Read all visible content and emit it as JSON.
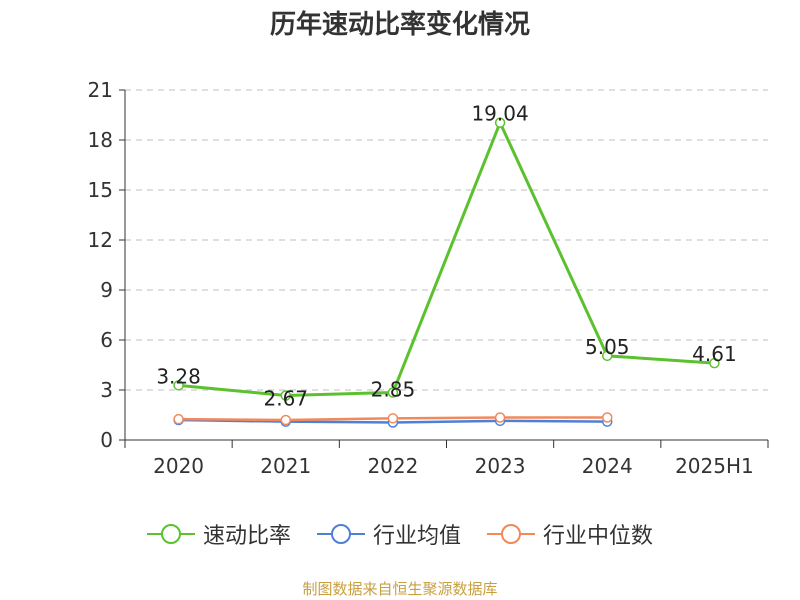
{
  "title": "历年速动比率变化情况",
  "source": "制图数据来自恒生聚源数据库",
  "chart_data": {
    "type": "line",
    "title": "历年速动比率变化情况",
    "categories": [
      "2020",
      "2021",
      "2022",
      "2023",
      "2024",
      "2025H1"
    ],
    "ylim": [
      0,
      21
    ],
    "yticks": [
      0,
      3,
      6,
      9,
      12,
      15,
      18,
      21
    ],
    "grid": true,
    "legend_position": "bottom",
    "series": [
      {
        "name": "速动比率",
        "color": "#5bc12e",
        "values": [
          3.28,
          2.67,
          2.85,
          19.04,
          5.05,
          4.61
        ],
        "labels": [
          "3.28",
          "2.67",
          "2.85",
          "19.04",
          "5.05",
          "4.61"
        ]
      },
      {
        "name": "行业均值",
        "color": "#4f7fd6",
        "values": [
          1.2,
          1.1,
          1.05,
          1.15,
          1.1,
          null
        ]
      },
      {
        "name": "行业中位数",
        "color": "#f08a5d",
        "values": [
          1.25,
          1.2,
          1.3,
          1.35,
          1.35,
          null
        ]
      }
    ]
  }
}
